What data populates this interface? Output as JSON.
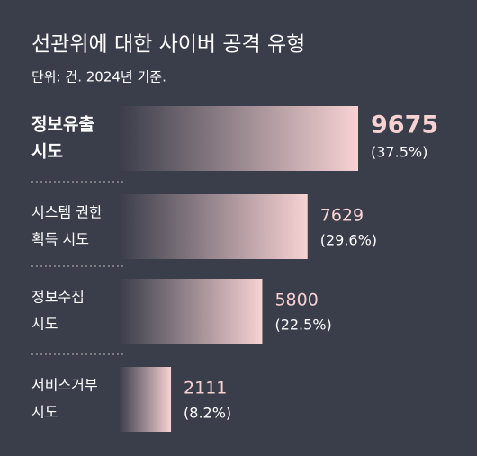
{
  "chart_data": {
    "type": "bar",
    "orientation": "horizontal",
    "title": "선관위에 대한 사이버 공격 유형",
    "subtitle": "단위: 건. 2024년 기준.",
    "categories": [
      [
        "정보유출",
        "시도"
      ],
      [
        "시스템 권한",
        "획득 시도"
      ],
      [
        "정보수집",
        "시도"
      ],
      [
        "서비스거부",
        "시도"
      ]
    ],
    "values": [
      9675,
      7629,
      5800,
      2111
    ],
    "share_labels": [
      "(37.5%)",
      "(29.6%)",
      "(22.5%)",
      "(8.2%)"
    ],
    "color": "#f7d2d3"
  }
}
